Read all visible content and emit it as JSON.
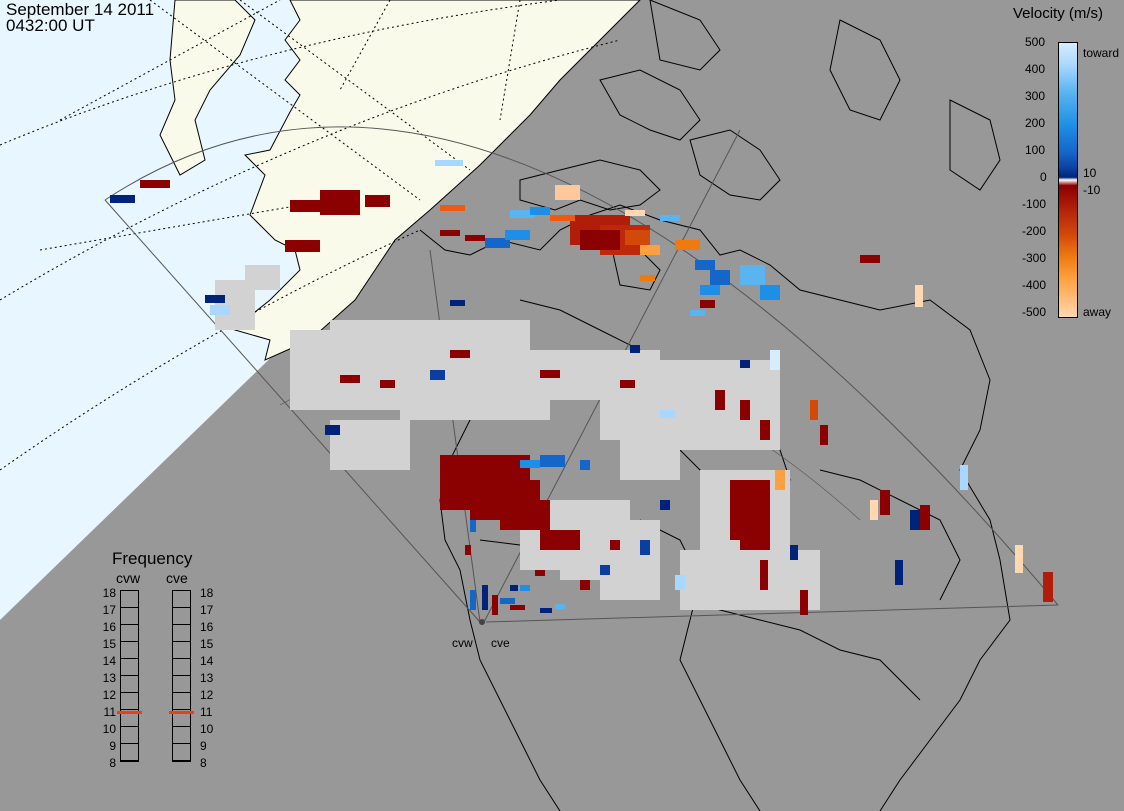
{
  "header": {
    "date": "September 14 2011",
    "time": "0432:00 UT"
  },
  "colorbar": {
    "title": "Velocity (m/s)",
    "ticks": [
      "500",
      "400",
      "300",
      "200",
      "100",
      "0",
      "-100",
      "-200",
      "-300",
      "-400",
      "-500"
    ],
    "small_ticks": [
      "10",
      "-10"
    ],
    "toward_label": "toward",
    "away_label": "away",
    "colors_toward": [
      "#d6ecff",
      "#a8d8ff",
      "#5ab4f0",
      "#1e8fe6",
      "#1466c8",
      "#0a3fa0",
      "#00237a"
    ],
    "colors_away": [
      "#8b0000",
      "#b01e0a",
      "#d24a0a",
      "#ee7a10",
      "#ffa040",
      "#ffd7b0"
    ],
    "ground_scatter_color": "#d2d2d2"
  },
  "frequency_panel": {
    "title": "Frequency",
    "radars": [
      "cvw",
      "cve"
    ],
    "scale": [
      "18",
      "17",
      "16",
      "15",
      "14",
      "13",
      "12",
      "11",
      "10",
      "9",
      "8"
    ],
    "current_mhz": [
      10.8,
      10.8
    ],
    "marker_color": "#e8401a"
  },
  "radars": {
    "labels": [
      "cvw",
      "cve"
    ]
  },
  "map_colors": {
    "ocean_day": "#e8f6ff",
    "land_day": "#fafaea",
    "night": "#989898",
    "coastline": "#000000"
  }
}
